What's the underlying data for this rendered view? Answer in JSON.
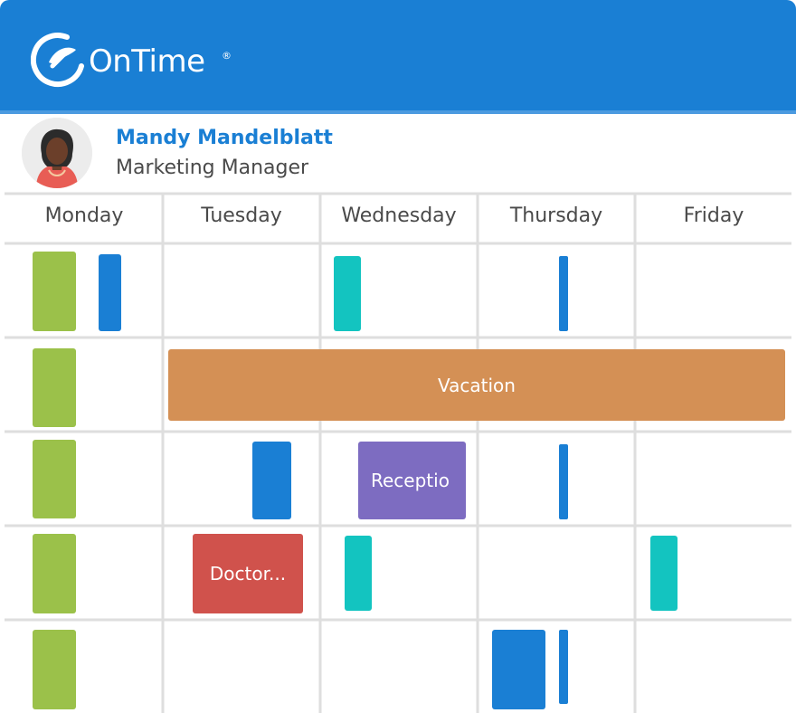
{
  "app": {
    "name": "OnTime",
    "trademark": "®"
  },
  "colors": {
    "brand": "#1a7fd4",
    "green": "#9bc14a",
    "blue": "#1a7fd4",
    "teal": "#13c4c0",
    "vacation": "#d49055",
    "reception": "#7d6cc1",
    "doctor": "#d0524c"
  },
  "user": {
    "name": "Mandy Mandelblatt",
    "title": "Marketing Manager",
    "avatar_icon": "person-avatar-icon"
  },
  "calendar": {
    "days": [
      "Monday",
      "Tuesday",
      "Wednesday",
      "Thursday",
      "Friday"
    ],
    "events": {
      "vacation": "Vacation",
      "reception": "Receptio",
      "doctor": "Doctor..."
    }
  }
}
